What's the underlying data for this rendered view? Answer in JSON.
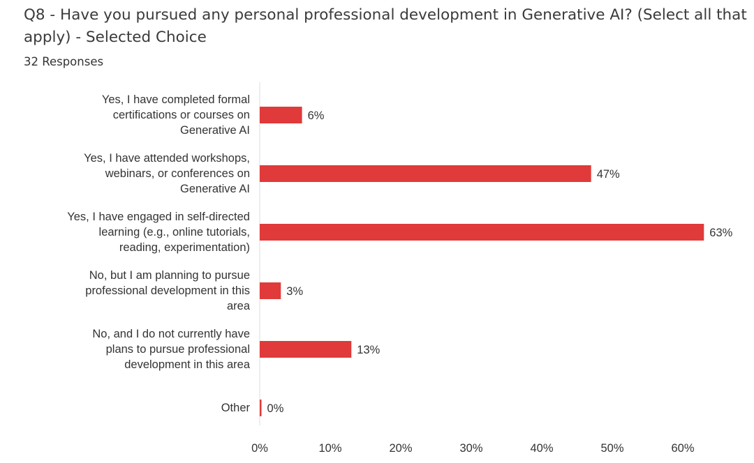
{
  "chart_data": {
    "type": "bar",
    "orientation": "horizontal",
    "title": "Q8 - Have you pursued any personal professional development in Generative AI? (Select all that apply) - Selected Choice",
    "subtitle": "32 Responses",
    "categories": [
      "Yes, I have completed formal\ncertifications or courses on\nGenerative AI",
      "Yes, I have attended workshops,\nwebinars, or conferences on\nGenerative AI",
      "Yes, I have engaged in self-directed\nlearning (e.g., online tutorials,\nreading, experimentation)",
      "No, but I am planning to pursue\nprofessional development in this\narea",
      "No, and I do not currently have\nplans to pursue professional\ndevelopment in this area",
      "Other"
    ],
    "values": [
      6,
      47,
      63,
      3,
      13,
      0
    ],
    "data_labels": [
      "6%",
      "47%",
      "63%",
      "3%",
      "13%",
      "0%"
    ],
    "xlim": [
      0,
      60
    ],
    "xticks": [
      0,
      10,
      20,
      30,
      40,
      50,
      60
    ],
    "xtick_labels": [
      "0%",
      "10%",
      "20%",
      "30%",
      "40%",
      "50%",
      "60%"
    ],
    "bar_color": "#e03a3a",
    "grid": false
  }
}
